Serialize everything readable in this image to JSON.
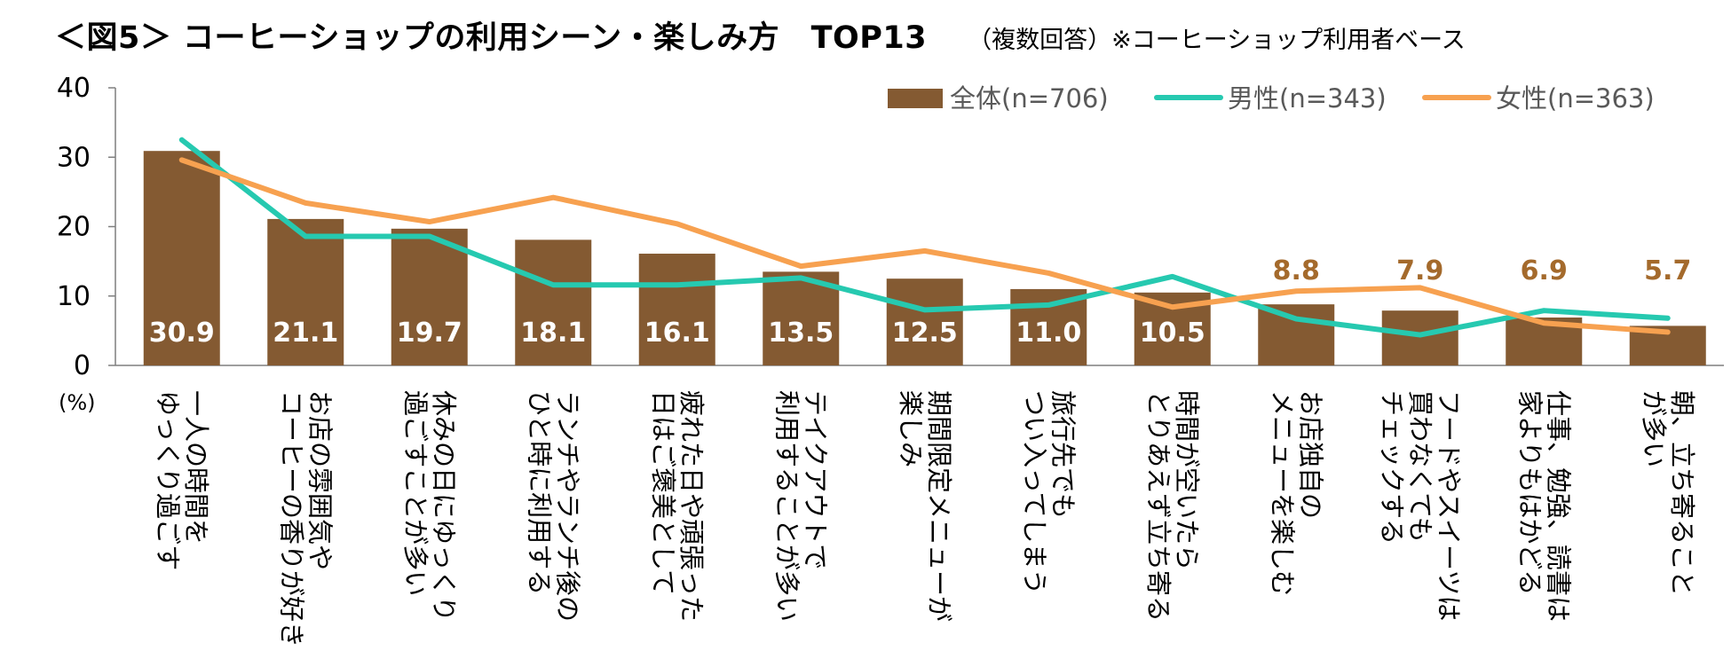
{
  "title": "＜図5＞ コーヒーショップの利用シーン・楽しみ方　TOP13",
  "note": "（複数回答）※コーヒーショップ利用者ベース",
  "chart_data": {
    "type": "bar+line",
    "unit_label": "(%)",
    "ylim": [
      0,
      40
    ],
    "yticks": [
      "0",
      "10",
      "20",
      "30",
      "40"
    ],
    "categories": [
      [
        "一人の時間を",
        "ゆっくり過ごす"
      ],
      [
        "お店の雰囲気や",
        "コーヒーの香りが好き"
      ],
      [
        "休みの日にゆっくり",
        "過ごすことが多い"
      ],
      [
        "ランチやランチ後の",
        "ひと時に利用する"
      ],
      [
        "疲れた日や頑張った",
        "日はご褒美として"
      ],
      [
        "テイクアウトで",
        "利用することが多い"
      ],
      [
        "期間限定メニューが",
        "楽しみ"
      ],
      [
        "旅行先でも",
        "つい入ってしまう"
      ],
      [
        "時間が空いたら",
        "とりあえず立ち寄る"
      ],
      [
        "お店独自の",
        "メニューを楽しむ"
      ],
      [
        "フードやスイーツは",
        "買わなくても",
        "チェックする"
      ],
      [
        "仕事、勉強、読書は",
        "家よりもはかどる"
      ],
      [
        "朝、立ち寄ること",
        "が多い"
      ]
    ],
    "series": [
      {
        "name": "全体(n=706)",
        "kind": "bar",
        "color": "#845a32",
        "values": [
          30.9,
          21.1,
          19.7,
          18.1,
          16.1,
          13.5,
          12.5,
          11.0,
          10.5,
          8.8,
          7.9,
          6.9,
          5.7
        ],
        "labels": [
          "30.9",
          "21.1",
          "19.7",
          "18.1",
          "16.1",
          "13.5",
          "12.5",
          "11.0",
          "10.5",
          "8.8",
          "7.9",
          "6.9",
          "5.7"
        ]
      },
      {
        "name": "男性(n=343)",
        "kind": "line",
        "color": "#26c9b0",
        "values": [
          32.5,
          18.6,
          18.6,
          11.6,
          11.6,
          12.6,
          8.0,
          8.7,
          12.8,
          6.7,
          4.4,
          7.9,
          6.8
        ]
      },
      {
        "name": "女性(n=363)",
        "kind": "line",
        "color": "#f7a150",
        "values": [
          29.6,
          23.4,
          20.7,
          24.2,
          20.4,
          14.3,
          16.5,
          13.3,
          8.4,
          10.7,
          11.2,
          6.1,
          4.8
        ]
      }
    ]
  }
}
